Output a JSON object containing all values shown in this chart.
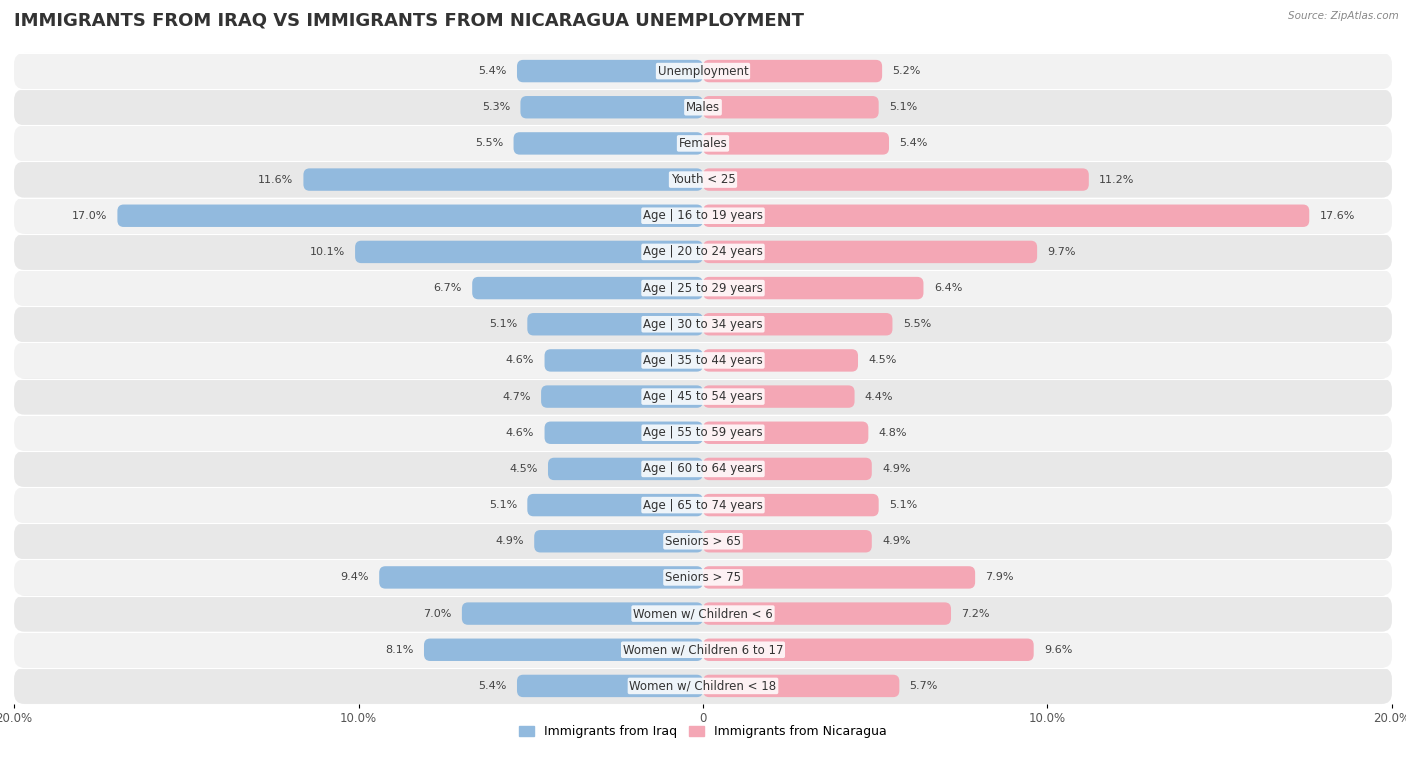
{
  "title": "IMMIGRANTS FROM IRAQ VS IMMIGRANTS FROM NICARAGUA UNEMPLOYMENT",
  "source": "Source: ZipAtlas.com",
  "categories": [
    "Unemployment",
    "Males",
    "Females",
    "Youth < 25",
    "Age | 16 to 19 years",
    "Age | 20 to 24 years",
    "Age | 25 to 29 years",
    "Age | 30 to 34 years",
    "Age | 35 to 44 years",
    "Age | 45 to 54 years",
    "Age | 55 to 59 years",
    "Age | 60 to 64 years",
    "Age | 65 to 74 years",
    "Seniors > 65",
    "Seniors > 75",
    "Women w/ Children < 6",
    "Women w/ Children 6 to 17",
    "Women w/ Children < 18"
  ],
  "iraq_values": [
    5.4,
    5.3,
    5.5,
    11.6,
    17.0,
    10.1,
    6.7,
    5.1,
    4.6,
    4.7,
    4.6,
    4.5,
    5.1,
    4.9,
    9.4,
    7.0,
    8.1,
    5.4
  ],
  "nicaragua_values": [
    5.2,
    5.1,
    5.4,
    11.2,
    17.6,
    9.7,
    6.4,
    5.5,
    4.5,
    4.4,
    4.8,
    4.9,
    5.1,
    4.9,
    7.9,
    7.2,
    9.6,
    5.7
  ],
  "iraq_color": "#92BADE",
  "nicaragua_color": "#F4A7B5",
  "iraq_label": "Immigrants from Iraq",
  "nicaragua_label": "Immigrants from Nicaragua",
  "axis_limit": 20.0,
  "background_color": "#FFFFFF",
  "row_color_even": "#E8E8E8",
  "row_color_odd": "#F2F2F2",
  "bar_height": 0.62,
  "title_fontsize": 13,
  "label_fontsize": 8.5,
  "value_fontsize": 8.0
}
